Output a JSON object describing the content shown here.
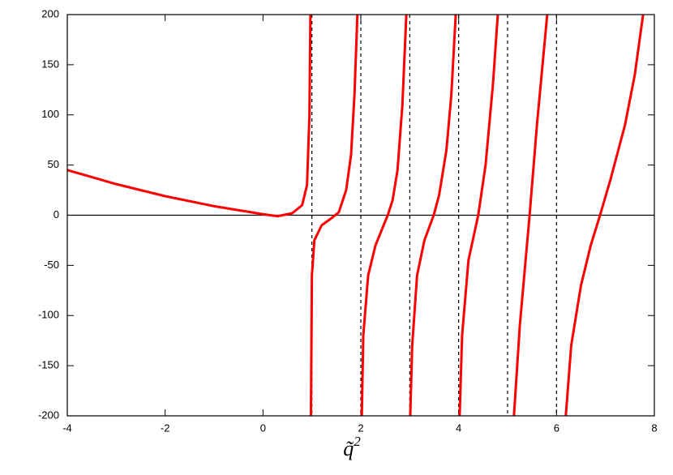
{
  "chart_data": {
    "type": "line",
    "xlabel": "q̃",
    "xlabel_sup": "2",
    "x": [
      -4,
      -3,
      -2,
      -1,
      0,
      0.3,
      0.6,
      0.8,
      0.9,
      0.95,
      0.97,
      null,
      0.98,
      1.0,
      1.05,
      1.2,
      1.4,
      1.55,
      1.7,
      1.8,
      1.87,
      1.93,
      null,
      2.02,
      2.05,
      2.15,
      2.3,
      2.45,
      2.55,
      2.65,
      2.75,
      2.85,
      2.93,
      null,
      3.01,
      3.05,
      3.15,
      3.3,
      3.49,
      3.6,
      3.75,
      3.85,
      3.94,
      null,
      4.02,
      4.07,
      4.2,
      4.4,
      4.55,
      4.7,
      4.8,
      null,
      5.13,
      5.25,
      5.45,
      5.6,
      5.81,
      null,
      6.19,
      6.3,
      6.5,
      6.7,
      6.89,
      7.1,
      7.4,
      7.6,
      7.77
    ],
    "series": [
      {
        "color": "#ff0000",
        "values": [
          45,
          31,
          19,
          9,
          1,
          -1,
          2,
          10,
          30,
          100,
          200,
          null,
          -200,
          -60,
          -25,
          -10,
          -3,
          3,
          25,
          60,
          120,
          200,
          null,
          -200,
          -120,
          -60,
          -30,
          -12,
          0,
          15,
          45,
          110,
          200,
          null,
          -200,
          -130,
          -60,
          -25,
          0,
          20,
          65,
          120,
          200,
          null,
          -200,
          -120,
          -45,
          0,
          50,
          130,
          200,
          null,
          -200,
          -110,
          0,
          90,
          200,
          null,
          -200,
          -130,
          -70,
          -30,
          0,
          35,
          90,
          140,
          200
        ]
      }
    ],
    "asymptotes": [
      1,
      2,
      3,
      4,
      5,
      6
    ],
    "zero_line": true,
    "xlim": [
      -4,
      8
    ],
    "xticks": [
      -4,
      -2,
      0,
      2,
      4,
      6,
      8
    ],
    "ylim": [
      -200,
      200
    ],
    "yticks": [
      -200,
      -150,
      -100,
      -50,
      0,
      50,
      100,
      150,
      200
    ]
  }
}
